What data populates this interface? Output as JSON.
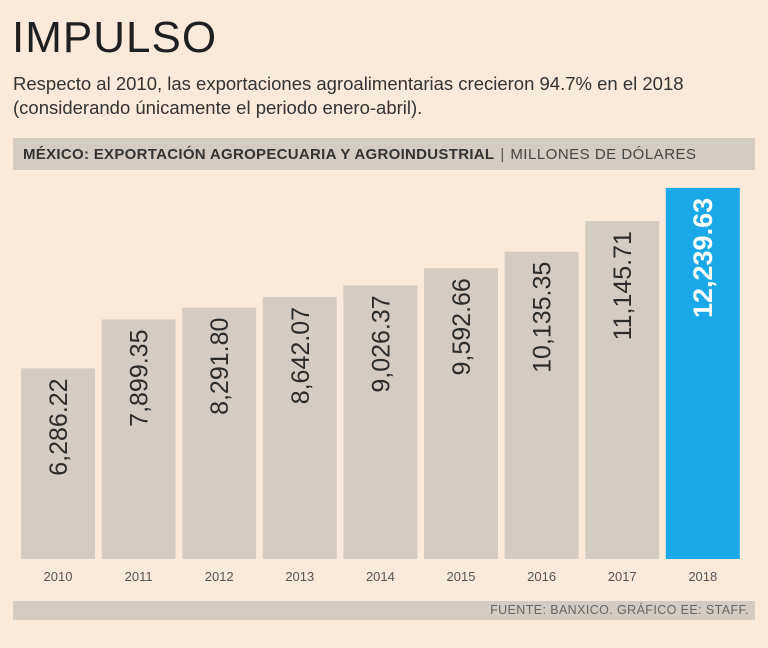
{
  "header": {
    "title": "IMPULSO",
    "subtitle": "Respecto al 2010, las exportaciones agroalimentarias crecieron 94.7% en el 2018 (considerando únicamente el periodo enero-abril)."
  },
  "section": {
    "label": "MÉXICO: EXPORTACIÓN AGROPECUARIA Y AGROINDUSTRIAL",
    "separator": "|",
    "unit": "MILLONES DE DÓLARES"
  },
  "footer": {
    "source": "FUENTE: BANXICO. GRÁFICO EE: STAFF."
  },
  "chart_data": {
    "type": "bar",
    "categories": [
      "2010",
      "2011",
      "2012",
      "2013",
      "2014",
      "2015",
      "2016",
      "2017",
      "2018"
    ],
    "values": [
      6286.22,
      7899.35,
      8291.8,
      8642.07,
      9026.37,
      9592.66,
      10135.35,
      11145.71,
      12239.63
    ],
    "value_labels": [
      "6,286.22",
      "7,899.35",
      "8,291.80",
      "8,642.07",
      "9,026.37",
      "9,592.66",
      "10,135.35",
      "11,145.71",
      "12,239.63"
    ],
    "highlight_index": 8,
    "colors": {
      "bar": "#d4ccc3",
      "highlight": "#1aa9e8",
      "label": "#2b2b2b",
      "highlight_label": "#ffffff"
    },
    "grid": false,
    "legend": "none"
  }
}
